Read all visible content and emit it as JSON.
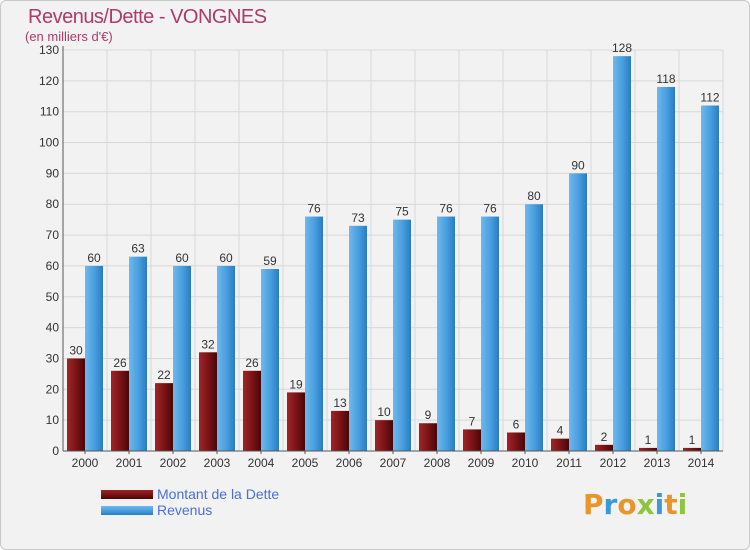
{
  "title": "Revenus/Dette - VONGNES",
  "subtitle": "(en milliers d'€)",
  "logo": "Proxiti",
  "colors": {
    "dette": "#7a1416",
    "revenus": "#4aa0e0",
    "title": "#b03a6a",
    "legend_text": "#4a6fd8",
    "grid": "#d8d8d8"
  },
  "chart_data": {
    "type": "bar",
    "categories": [
      "2000",
      "2001",
      "2002",
      "2003",
      "2004",
      "2005",
      "2006",
      "2007",
      "2008",
      "2009",
      "2010",
      "2011",
      "2012",
      "2013",
      "2014"
    ],
    "series": [
      {
        "name": "Montant de la Dette",
        "values": [
          30,
          26,
          22,
          32,
          26,
          19,
          13,
          10,
          9,
          7,
          6,
          4,
          2,
          1,
          1
        ]
      },
      {
        "name": "Revenus",
        "values": [
          60,
          63,
          60,
          60,
          59,
          76,
          73,
          75,
          76,
          76,
          80,
          90,
          128,
          118,
          112
        ]
      }
    ],
    "ylim": [
      0,
      130
    ],
    "yticks": [
      0,
      10,
      20,
      30,
      40,
      50,
      60,
      70,
      80,
      90,
      100,
      110,
      120,
      130
    ],
    "grid": true,
    "legend": "bottom-left"
  }
}
